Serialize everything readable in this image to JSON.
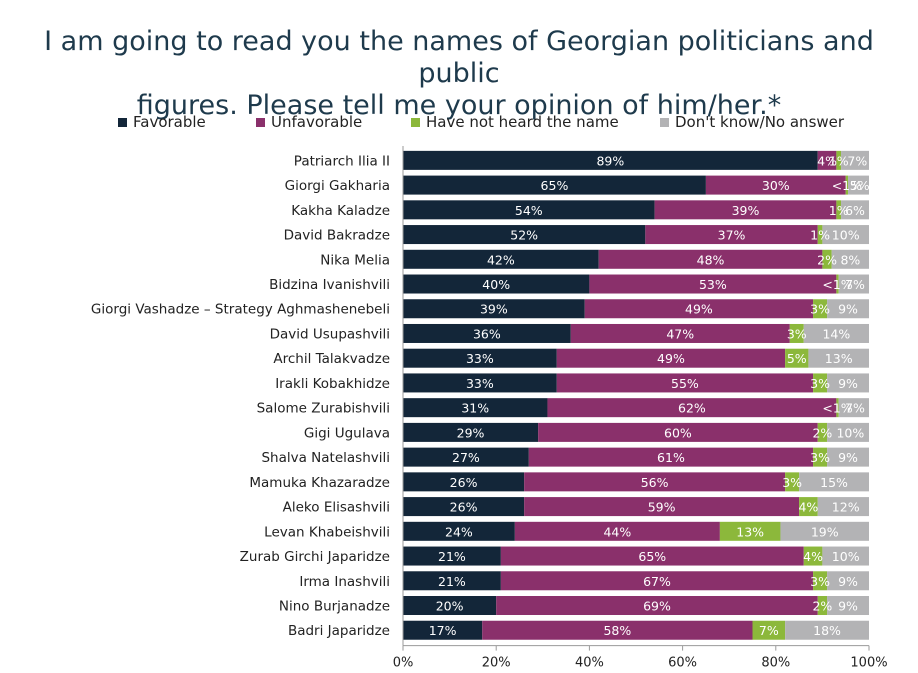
{
  "title": "I am going to read you the names of Georgian politicians and public\nfigures. Please tell me your opinion of him/her.*",
  "legend": [
    {
      "name": "Favorable",
      "color": "#132639"
    },
    {
      "name": "Unfavorable",
      "color": "#8a306b"
    },
    {
      "name": "Have not heard the name",
      "color": "#8cb83b"
    },
    {
      "name": "Don't know/No answer",
      "color": "#b3b3b5"
    }
  ],
  "chart_data": {
    "type": "bar",
    "orientation": "horizontal",
    "stacked": true,
    "title": "I am going to read you the names of Georgian politicians and public figures. Please tell me your opinion of him/her.*",
    "categories": [
      "Patriarch Ilia II",
      "Giorgi Gakharia",
      "Kakha Kaladze",
      "David Bakradze",
      "Nika Melia",
      "Bidzina Ivanishvili",
      "Giorgi Vashadze – Strategy Aghmashenebeli",
      "David Usupashvili",
      "Archil Talakvadze",
      "Irakli Kobakhidze",
      "Salome Zurabishvili",
      "Gigi Ugulava",
      "Shalva Natelashvili",
      "Mamuka Khazaradze",
      "Aleko Elisashvili",
      "Levan Khabeishvili",
      "Zurab Girchi Japaridze",
      "Irma Inashvili",
      "Nino Burjanadze",
      "Badri Japaridze"
    ],
    "series": [
      {
        "name": "Favorable",
        "color": "#132639",
        "values": [
          89,
          65,
          54,
          52,
          42,
          40,
          39,
          36,
          33,
          33,
          31,
          29,
          27,
          26,
          26,
          24,
          21,
          21,
          20,
          17
        ],
        "labels": [
          "89%",
          "65%",
          "54%",
          "52%",
          "42%",
          "40%",
          "39%",
          "36%",
          "33%",
          "33%",
          "31%",
          "29%",
          "27%",
          "26%",
          "26%",
          "24%",
          "21%",
          "21%",
          "20%",
          "17%"
        ]
      },
      {
        "name": "Unfavorable",
        "color": "#8a306b",
        "values": [
          4,
          30,
          39,
          37,
          48,
          53,
          49,
          47,
          49,
          55,
          62,
          60,
          61,
          56,
          59,
          44,
          65,
          67,
          69,
          58
        ],
        "labels": [
          "4%",
          "30%",
          "39%",
          "37%",
          "48%",
          "53%",
          "49%",
          "47%",
          "49%",
          "55%",
          "62%",
          "60%",
          "61%",
          "56%",
          "59%",
          "44%",
          "65%",
          "67%",
          "69%",
          "58%"
        ]
      },
      {
        "name": "Have not heard the name",
        "color": "#8cb83b",
        "values": [
          1,
          0.5,
          1,
          1,
          2,
          0.5,
          3,
          3,
          5,
          3,
          0.5,
          2,
          3,
          3,
          4,
          13,
          4,
          3,
          2,
          7
        ],
        "labels": [
          "1%",
          "<1%",
          "1%",
          "1%",
          "2%",
          "<1%",
          "3%",
          "3%",
          "5%",
          "3%",
          "<1%",
          "2%",
          "3%",
          "3%",
          "4%",
          "13%",
          "4%",
          "3%",
          "2%",
          "7%"
        ]
      },
      {
        "name": "Don't know/No answer",
        "color": "#b3b3b5",
        "values": [
          7,
          5,
          6,
          10,
          8,
          7,
          9,
          14,
          13,
          9,
          7,
          10,
          9,
          15,
          12,
          19,
          10,
          9,
          9,
          18
        ],
        "labels": [
          "7%",
          "5%",
          "6%",
          "10%",
          "8%",
          "7%",
          "9%",
          "14%",
          "13%",
          "9%",
          "7%",
          "10%",
          "9%",
          "15%",
          "12%",
          "19%",
          "10%",
          "9%",
          "9%",
          "18%"
        ]
      }
    ],
    "xlim": [
      0,
      100
    ],
    "xticks": [
      "0%",
      "20%",
      "40%",
      "60%",
      "80%",
      "100%"
    ],
    "grid": false,
    "legend_position": "top"
  }
}
